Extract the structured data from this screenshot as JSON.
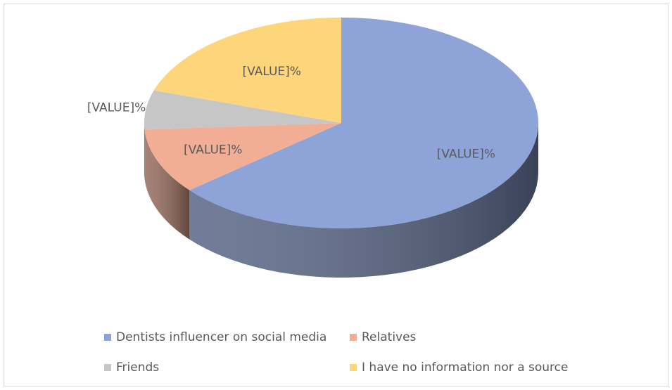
{
  "chart_data": {
    "type": "pie",
    "style": "3d",
    "categories": [
      "Dentists influencer on social media",
      "Relatives",
      "Friends",
      "I have no information nor a source"
    ],
    "values": [
      64,
      10,
      6,
      20
    ],
    "value_labels": [
      "[VALUE]%",
      "[VALUE]%",
      "[VALUE]%",
      "[VALUE]%"
    ],
    "colors": [
      "#8ea4d8",
      "#f2ae95",
      "#c6c6c6",
      "#fdd57a"
    ],
    "legend": "bottom"
  }
}
